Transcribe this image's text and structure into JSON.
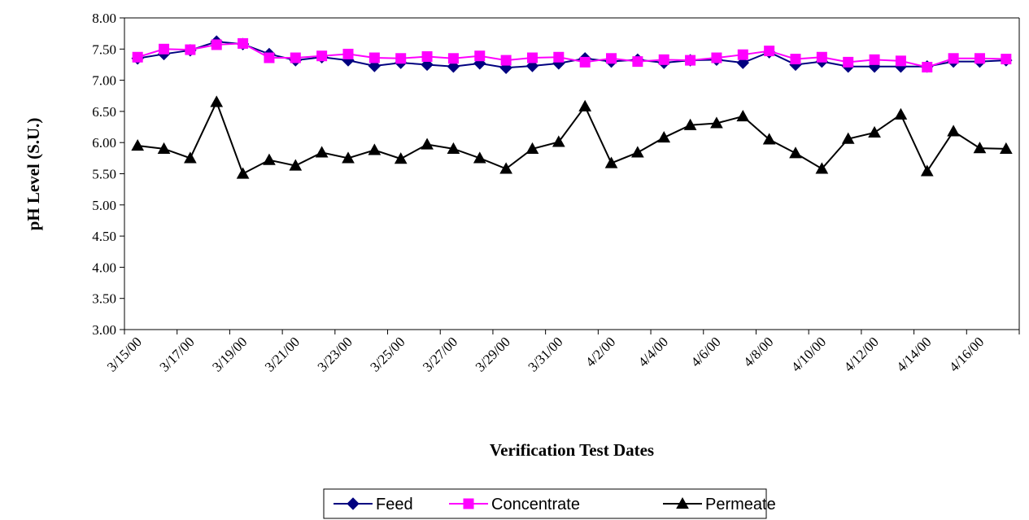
{
  "chart_data": {
    "type": "line",
    "title": "",
    "xlabel": "Verification Test Dates",
    "ylabel": "pH Level (S.U.)",
    "ylim": [
      3.0,
      8.0
    ],
    "yticks": [
      "3.00",
      "3.50",
      "4.00",
      "4.50",
      "5.00",
      "5.50",
      "6.00",
      "6.50",
      "7.00",
      "7.50",
      "8.00"
    ],
    "x_tick_labels": [
      "3/15/00",
      "3/17/00",
      "3/19/00",
      "3/21/00",
      "3/23/00",
      "3/25/00",
      "3/27/00",
      "3/29/00",
      "3/31/00",
      "4/2/00",
      "4/4/00",
      "4/6/00",
      "4/8/00",
      "4/10/00",
      "4/12/00",
      "4/14/00",
      "4/16/00"
    ],
    "grid": false,
    "legend_position": "bottom",
    "series": [
      {
        "name": "Feed",
        "color": "#000080",
        "marker": "diamond",
        "values": [
          7.35,
          7.42,
          7.48,
          7.62,
          7.58,
          7.42,
          7.32,
          7.37,
          7.32,
          7.23,
          7.28,
          7.25,
          7.22,
          7.27,
          7.2,
          7.23,
          7.27,
          7.35,
          7.3,
          7.33,
          7.28,
          7.32,
          7.33,
          7.28,
          7.45,
          7.25,
          7.3,
          7.22,
          7.22,
          7.22,
          7.22,
          7.3,
          7.3,
          7.32
        ]
      },
      {
        "name": "Concentrate",
        "color": "#FF00FF",
        "marker": "square",
        "values": [
          7.37,
          7.5,
          7.49,
          7.57,
          7.59,
          7.36,
          7.36,
          7.39,
          7.42,
          7.36,
          7.35,
          7.38,
          7.35,
          7.39,
          7.32,
          7.36,
          7.37,
          7.29,
          7.35,
          7.3,
          7.33,
          7.32,
          7.36,
          7.41,
          7.47,
          7.34,
          7.37,
          7.29,
          7.33,
          7.31,
          7.21,
          7.35,
          7.35,
          7.34
        ]
      },
      {
        "name": "Permeate",
        "color": "#000000",
        "marker": "triangle",
        "values": [
          5.95,
          5.9,
          5.75,
          6.65,
          5.5,
          5.72,
          5.63,
          5.84,
          5.75,
          5.88,
          5.74,
          5.97,
          5.9,
          5.75,
          5.58,
          5.9,
          6.01,
          6.58,
          5.67,
          5.84,
          6.08,
          6.28,
          6.31,
          6.42,
          6.05,
          5.83,
          5.58,
          6.06,
          6.16,
          6.45,
          5.54,
          6.18,
          5.91,
          5.9
        ]
      }
    ]
  }
}
